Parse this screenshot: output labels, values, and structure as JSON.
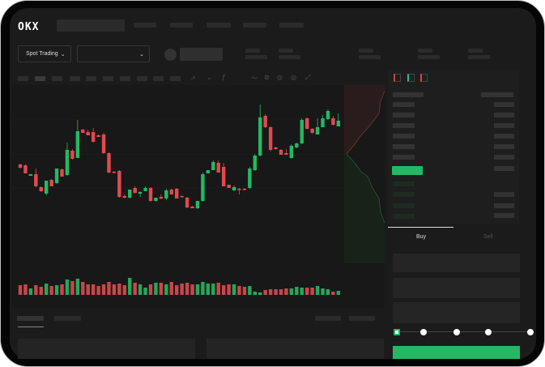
{
  "brand": {
    "logo": "OKX"
  },
  "toolbar": {
    "spot_trading_label": "Spot Trading",
    "chevron": "⌄"
  },
  "trade": {
    "tabs": [
      {
        "label": "Buy",
        "active": true
      },
      {
        "label": "Sell",
        "active": false
      }
    ],
    "leverage_steps": 5,
    "selected_step": 0
  },
  "colors": {
    "up": "#25b864",
    "down": "#e04a4f",
    "background": "#1b1b1b",
    "panel": "#1e1e1e"
  },
  "chart_data": {
    "type": "candlestick",
    "title": "",
    "candles": [
      [
        97,
        98,
        92,
        93
      ],
      [
        96,
        97,
        86,
        86
      ],
      [
        83,
        85,
        83,
        85
      ],
      [
        85,
        92,
        69,
        70
      ],
      [
        69,
        70,
        63,
        64
      ],
      [
        61,
        77,
        59,
        77
      ],
      [
        78,
        79,
        70,
        70
      ],
      [
        74,
        92,
        73,
        92
      ],
      [
        91,
        92,
        82,
        82
      ],
      [
        84,
        124,
        83,
        115
      ],
      [
        114,
        116,
        103,
        104
      ],
      [
        105,
        152,
        105,
        138
      ],
      [
        140,
        141,
        136,
        136
      ],
      [
        137,
        140,
        133,
        133
      ],
      [
        137,
        142,
        124,
        125
      ],
      [
        133,
        134,
        131,
        131
      ],
      [
        134,
        136,
        110,
        111
      ],
      [
        111,
        112,
        86,
        87
      ],
      [
        88,
        89,
        86,
        87
      ],
      [
        89,
        90,
        56,
        57
      ],
      [
        58,
        60,
        55,
        56
      ],
      [
        56,
        66,
        55,
        66
      ],
      [
        68,
        70,
        61,
        62
      ],
      [
        61,
        64,
        57,
        63
      ],
      [
        64,
        70,
        64,
        68
      ],
      [
        68,
        69,
        51,
        52
      ],
      [
        52,
        56,
        51,
        56
      ],
      [
        57,
        60,
        54,
        55
      ],
      [
        55,
        67,
        53,
        65
      ],
      [
        66,
        67,
        60,
        60
      ],
      [
        67,
        68,
        55,
        55
      ],
      [
        58,
        59,
        57,
        57
      ],
      [
        56,
        57,
        43,
        44
      ],
      [
        45,
        46,
        43,
        43
      ],
      [
        43,
        52,
        42,
        52
      ],
      [
        52,
        87,
        51,
        85
      ],
      [
        86,
        90,
        86,
        90
      ],
      [
        90,
        102,
        90,
        100
      ],
      [
        99,
        102,
        87,
        87
      ],
      [
        94,
        99,
        70,
        70
      ],
      [
        72,
        72,
        68,
        68
      ],
      [
        65,
        71,
        64,
        69
      ],
      [
        67,
        68,
        60,
        66
      ],
      [
        67,
        68,
        65,
        66
      ],
      [
        68,
        94,
        67,
        92
      ],
      [
        90,
        110,
        89,
        108
      ],
      [
        108,
        171,
        107,
        155
      ],
      [
        157,
        159,
        142,
        143
      ],
      [
        143,
        144,
        113,
        115
      ],
      [
        118,
        119,
        115,
        116
      ],
      [
        115,
        116,
        109,
        109
      ],
      [
        111,
        116,
        109,
        109
      ],
      [
        105,
        122,
        104,
        120
      ],
      [
        118,
        124,
        117,
        123
      ],
      [
        123,
        154,
        122,
        152
      ],
      [
        154,
        155,
        140,
        141
      ],
      [
        141,
        142,
        135,
        136
      ],
      [
        134,
        154,
        134,
        143
      ],
      [
        143,
        158,
        143,
        154
      ],
      [
        153,
        165,
        152,
        163
      ],
      [
        154,
        157,
        145,
        146
      ],
      [
        144,
        160,
        144,
        151
      ]
    ],
    "volume": [
      12,
      13,
      8,
      12,
      10,
      14,
      11,
      12,
      13,
      19,
      17,
      20,
      16,
      13,
      13,
      11,
      13,
      16,
      13,
      14,
      12,
      21,
      15,
      13,
      9,
      13,
      15,
      15,
      13,
      16,
      12,
      14,
      15,
      13,
      13,
      16,
      14,
      14,
      15,
      12,
      13,
      13,
      11,
      10,
      11,
      4,
      3,
      6,
      7,
      7,
      7,
      8,
      8,
      10,
      9,
      9,
      9,
      11,
      8,
      7,
      4,
      5
    ]
  }
}
